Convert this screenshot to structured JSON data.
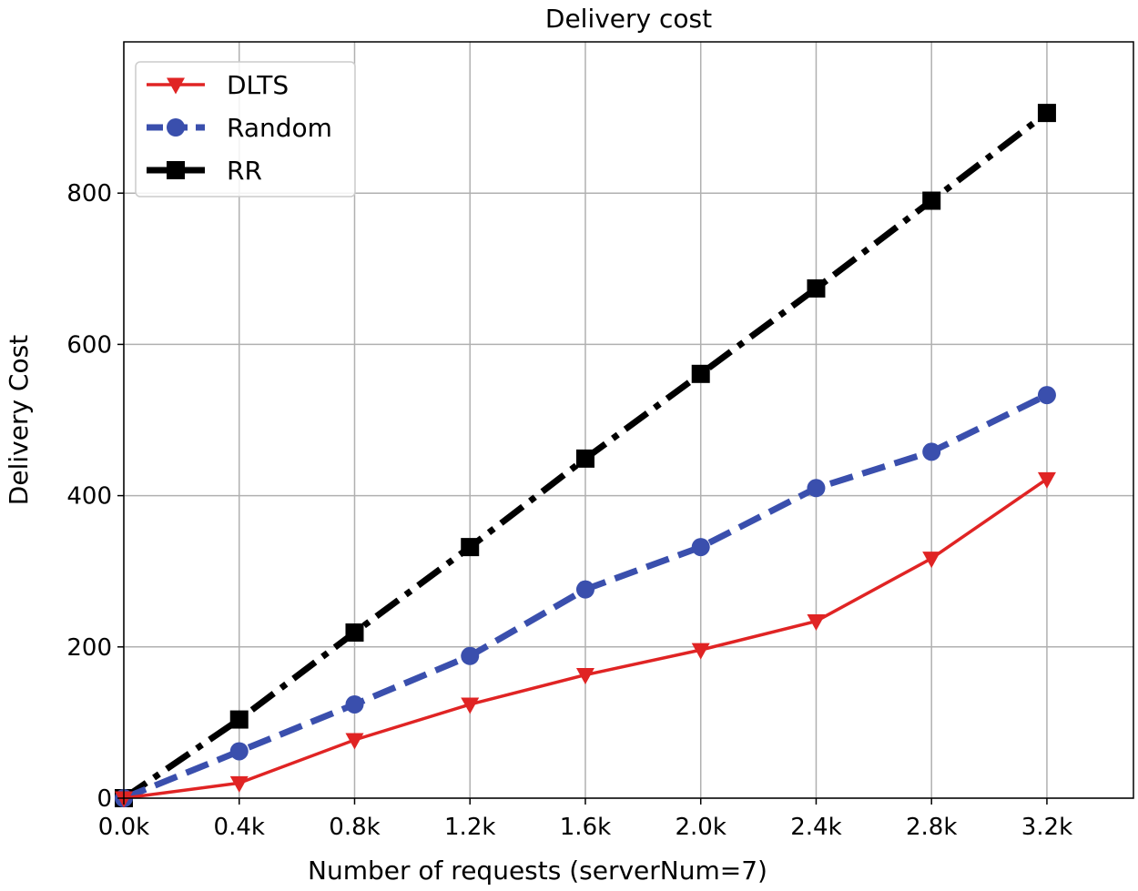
{
  "chart_data": {
    "type": "line",
    "title": "Delivery cost",
    "xlabel": "Number of requests (serverNum=7)",
    "ylabel": "Delivery Cost",
    "x": [
      0,
      0.4,
      0.8,
      1.2,
      1.6,
      2.0,
      2.4,
      2.8,
      3.2
    ],
    "x_tick_values": [
      0,
      0.4,
      0.8,
      1.2,
      1.6,
      2.0,
      2.4,
      2.8,
      3.2
    ],
    "x_tick_labels": [
      "0.0k",
      "0.4k",
      "0.8k",
      "1.2k",
      "1.6k",
      "2.0k",
      "2.4k",
      "2.8k",
      "3.2k"
    ],
    "y_ticks": [
      0,
      200,
      400,
      600,
      800
    ],
    "y_tick_labels": [
      "0",
      "200",
      "400",
      "600",
      "800"
    ],
    "xlim": [
      0,
      3.5
    ],
    "ylim": [
      0,
      1000
    ],
    "grid": true,
    "legend_position": "top-left",
    "series": [
      {
        "name": "DLTS",
        "color": "#e02424",
        "style": "solid",
        "marker": "triangle-down",
        "values": [
          0,
          20,
          77,
          124,
          163,
          196,
          234,
          317,
          422
        ]
      },
      {
        "name": "Random",
        "color": "#3a4fad",
        "style": "dashed",
        "marker": "circle",
        "values": [
          0,
          62,
          124,
          188,
          276,
          332,
          410,
          458,
          533
        ]
      },
      {
        "name": "RR",
        "color": "#000000",
        "style": "dashdot",
        "marker": "square",
        "values": [
          0,
          104,
          219,
          332,
          449,
          561,
          674,
          790,
          906
        ]
      }
    ]
  }
}
